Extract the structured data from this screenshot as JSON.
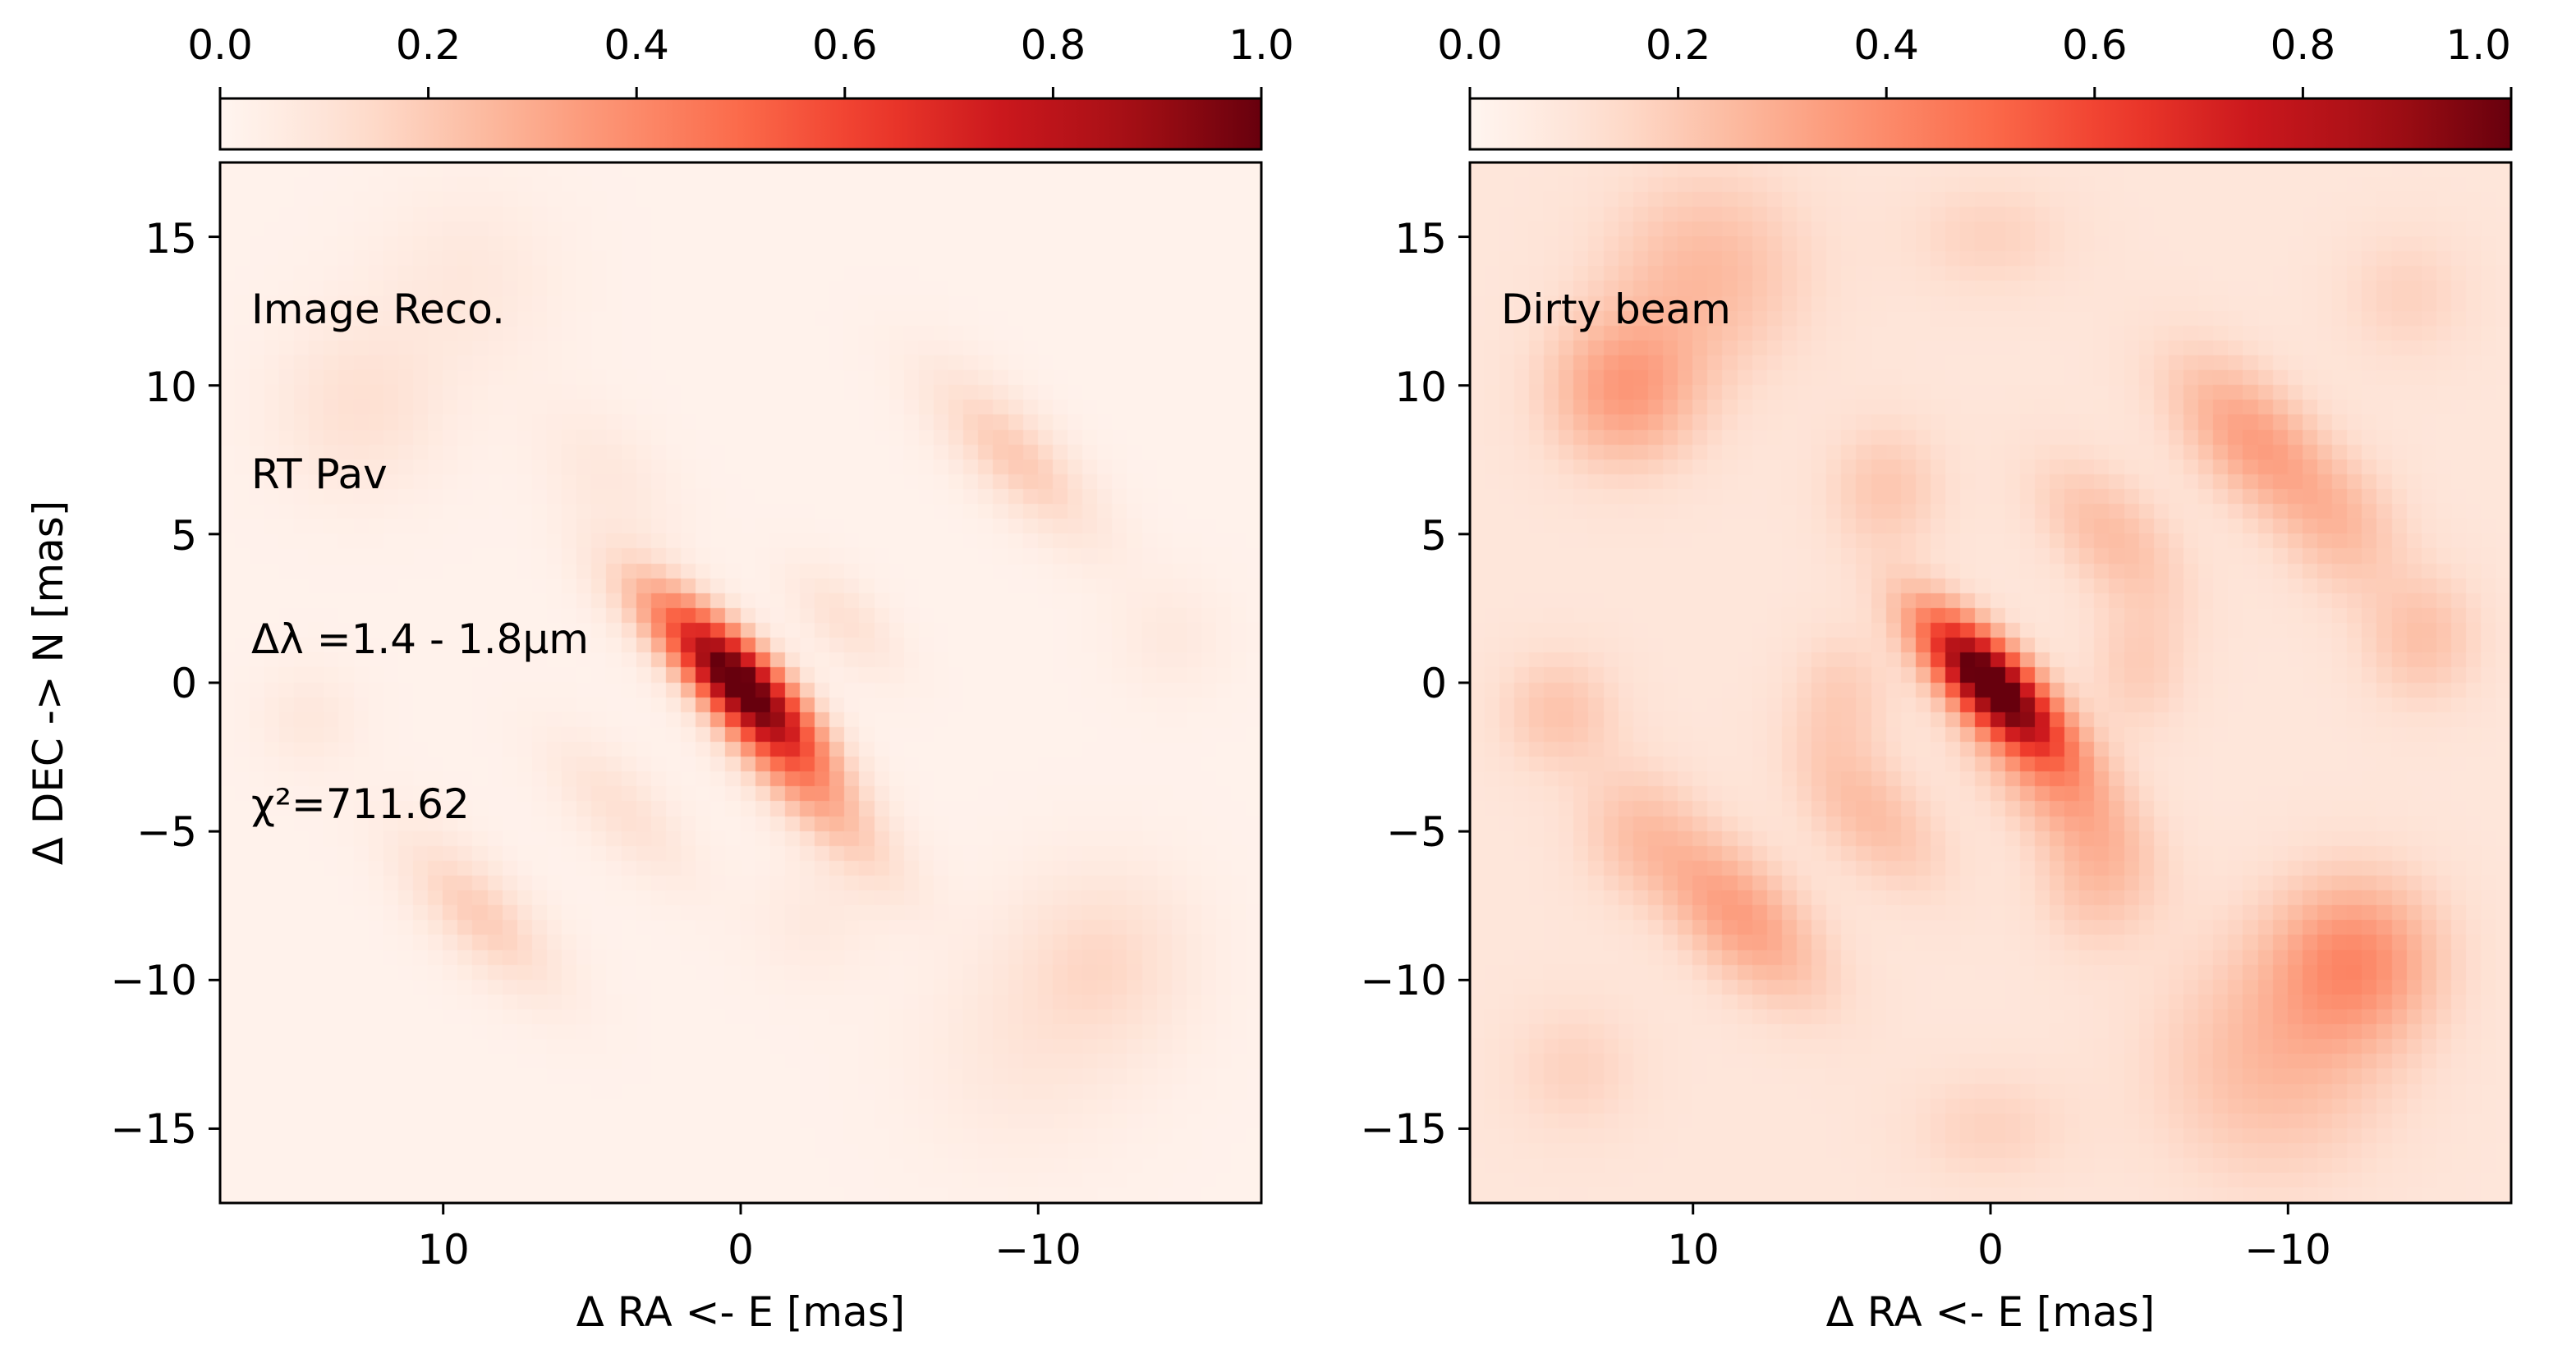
{
  "chart_data": [
    {
      "type": "heatmap",
      "title": "",
      "xlabel": "Δ RA <- E [mas]",
      "ylabel": "Δ DEC -> N [mas]",
      "xlim": [
        17.5,
        -17.5
      ],
      "ylim": [
        -17.5,
        17.5
      ],
      "x_ticks": [
        10,
        0,
        -10
      ],
      "x_tick_labels": [
        "10",
        "0",
        "−10"
      ],
      "y_ticks": [
        15,
        10,
        5,
        0,
        -5,
        -10,
        -15
      ],
      "y_tick_labels": [
        "15",
        "10",
        "5",
        "0",
        "−5",
        "−10",
        "−15"
      ],
      "colormap": "Reds",
      "colorbar": {
        "placement": "top",
        "range": [
          0,
          1
        ],
        "ticks": [
          "0.0",
          "0.2",
          "0.4",
          "0.6",
          "0.8",
          "1.0"
        ]
      },
      "annotations": [
        "Image Reco.",
        "RT Pav",
        "Δλ =1.4 - 1.8μm",
        "χ²=711.62"
      ],
      "components": [
        {
          "x": 0,
          "y": 0,
          "peak": 1.0,
          "sx": 0.8,
          "sy": 2.2,
          "theta": -45
        },
        {
          "x": -1.6,
          "y": -2.8,
          "peak": 0.28,
          "sx": 0.9,
          "sy": 2.2,
          "theta": -45
        },
        {
          "x": 2.8,
          "y": 2.5,
          "peak": 0.15,
          "sx": 0.9,
          "sy": 2.0,
          "theta": -45
        },
        {
          "x": -9.2,
          "y": 7.6,
          "peak": 0.18,
          "sx": 1.0,
          "sy": 2.6,
          "theta": -45
        },
        {
          "x": -3.5,
          "y": 2.1,
          "peak": 0.1,
          "sx": 0.8,
          "sy": 1.6,
          "theta": -45
        },
        {
          "x": 8.8,
          "y": -7.8,
          "peak": 0.17,
          "sx": 1.0,
          "sy": 2.4,
          "theta": -45
        },
        {
          "x": 4.0,
          "y": -4.3,
          "peak": 0.1,
          "sx": 0.9,
          "sy": 2.2,
          "theta": -45
        },
        {
          "x": -4.0,
          "y": -5.5,
          "peak": 0.09,
          "sx": 0.9,
          "sy": 2.0,
          "theta": -45
        },
        {
          "x": 12.8,
          "y": 9.3,
          "peak": 0.1,
          "sx": 2.0,
          "sy": 2.0,
          "theta": 0
        },
        {
          "x": 9.2,
          "y": 13.5,
          "peak": 0.06,
          "sx": 2.2,
          "sy": 2.2,
          "theta": 0
        },
        {
          "x": 4.5,
          "y": 7.0,
          "peak": 0.06,
          "sx": 1.2,
          "sy": 2.0,
          "theta": -45
        },
        {
          "x": -12.2,
          "y": -9.3,
          "peak": 0.12,
          "sx": 2.2,
          "sy": 2.2,
          "theta": 0
        },
        {
          "x": -9.5,
          "y": -12.5,
          "peak": 0.06,
          "sx": 2.6,
          "sy": 2.6,
          "theta": 0
        },
        {
          "x": -14.5,
          "y": 1.5,
          "peak": 0.05,
          "sx": 1.4,
          "sy": 1.4,
          "theta": 0
        },
        {
          "x": 14.5,
          "y": -1.2,
          "peak": 0.06,
          "sx": 1.2,
          "sy": 1.2,
          "theta": 0
        },
        {
          "x": -2.5,
          "y": -8.0,
          "peak": 0.05,
          "sx": 1.5,
          "sy": 1.5,
          "theta": 0
        }
      ],
      "background": 0.02
    },
    {
      "type": "heatmap",
      "title": "",
      "xlabel": "Δ RA <- E [mas]",
      "ylabel": "",
      "xlim": [
        17.5,
        -17.5
      ],
      "ylim": [
        -17.5,
        17.5
      ],
      "x_ticks": [
        10,
        0,
        -10
      ],
      "x_tick_labels": [
        "10",
        "0",
        "−10"
      ],
      "y_ticks": [
        15,
        10,
        5,
        0,
        -5,
        -10,
        -15
      ],
      "y_tick_labels": [
        "15",
        "10",
        "5",
        "0",
        "−5",
        "−10",
        "−15"
      ],
      "colormap": "Reds",
      "colorbar": {
        "placement": "top",
        "range": [
          0,
          1
        ],
        "ticks": [
          "0.0",
          "0.2",
          "0.4",
          "0.6",
          "0.8",
          "1.0"
        ]
      },
      "annotations": [
        "Dirty beam"
      ],
      "components": [
        {
          "x": 0,
          "y": 0,
          "peak": 1.0,
          "sx": 0.8,
          "sy": 2.1,
          "theta": -45
        },
        {
          "x": -2.0,
          "y": -3.2,
          "peak": 0.22,
          "sx": 1.2,
          "sy": 2.6,
          "theta": -45
        },
        {
          "x": -9.0,
          "y": 8.0,
          "peak": 0.25,
          "sx": 1.3,
          "sy": 2.6,
          "theta": -45
        },
        {
          "x": 12.3,
          "y": 9.8,
          "peak": 0.25,
          "sx": 1.8,
          "sy": 1.8,
          "theta": 0
        },
        {
          "x": 8.5,
          "y": -7.8,
          "peak": 0.25,
          "sx": 1.3,
          "sy": 2.6,
          "theta": -45
        },
        {
          "x": -12.3,
          "y": -9.3,
          "peak": 0.28,
          "sx": 2.0,
          "sy": 2.0,
          "theta": 0
        },
        {
          "x": 9.5,
          "y": 13.8,
          "peak": 0.16,
          "sx": 2.4,
          "sy": 2.4,
          "theta": 0
        },
        {
          "x": -9.5,
          "y": -12.8,
          "peak": 0.16,
          "sx": 2.8,
          "sy": 2.8,
          "theta": 0
        },
        {
          "x": -4.0,
          "y": 5.0,
          "peak": 0.15,
          "sx": 1.2,
          "sy": 2.2,
          "theta": -45
        },
        {
          "x": 4.0,
          "y": -4.5,
          "peak": 0.15,
          "sx": 1.2,
          "sy": 2.2,
          "theta": -45
        },
        {
          "x": 14.5,
          "y": -1.0,
          "peak": 0.13,
          "sx": 1.4,
          "sy": 1.4,
          "theta": 0
        },
        {
          "x": -14.5,
          "y": 1.5,
          "peak": 0.14,
          "sx": 1.4,
          "sy": 1.6,
          "theta": 0
        },
        {
          "x": 3.5,
          "y": 6.5,
          "peak": 0.12,
          "sx": 1.4,
          "sy": 1.6,
          "theta": 0
        },
        {
          "x": -3.5,
          "y": -6.8,
          "peak": 0.12,
          "sx": 1.4,
          "sy": 1.6,
          "theta": 0
        },
        {
          "x": -5.0,
          "y": 0.5,
          "peak": 0.1,
          "sx": 1.2,
          "sy": 1.6,
          "theta": 0
        },
        {
          "x": 5.0,
          "y": -0.5,
          "peak": 0.1,
          "sx": 1.2,
          "sy": 1.6,
          "theta": 0
        },
        {
          "x": -12.0,
          "y": 5.0,
          "peak": 0.1,
          "sx": 1.4,
          "sy": 1.6,
          "theta": 0
        },
        {
          "x": 12.0,
          "y": -5.0,
          "peak": 0.1,
          "sx": 1.4,
          "sy": 1.6,
          "theta": 0
        },
        {
          "x": 0.0,
          "y": 15.0,
          "peak": 0.08,
          "sx": 2.0,
          "sy": 1.4,
          "theta": 0
        },
        {
          "x": 0.0,
          "y": -15.0,
          "peak": 0.08,
          "sx": 2.0,
          "sy": 1.4,
          "theta": 0
        },
        {
          "x": -14.0,
          "y": 13.0,
          "peak": 0.08,
          "sx": 1.6,
          "sy": 1.6,
          "theta": 0
        },
        {
          "x": 14.0,
          "y": -13.0,
          "peak": 0.08,
          "sx": 1.6,
          "sy": 1.6,
          "theta": 0
        }
      ],
      "background": 0.09
    }
  ]
}
